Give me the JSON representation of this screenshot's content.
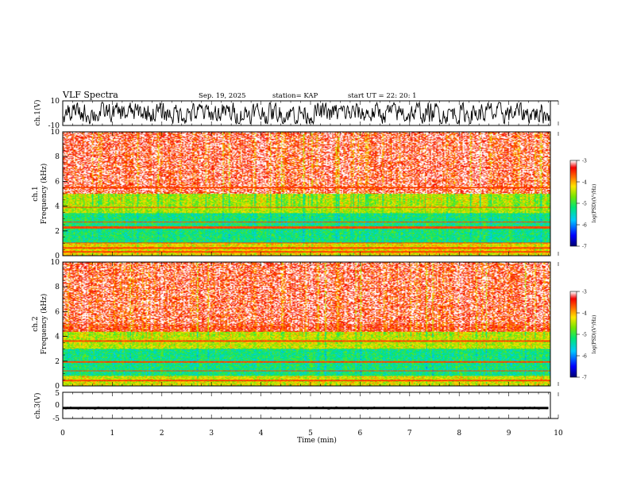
{
  "header": {
    "title": "VLF Spectra",
    "date": "Sep. 19, 2025",
    "station": "station= KAP",
    "start": "start  UT  =   22: 20: 1"
  },
  "colors": {
    "trace": "#000000",
    "axis": "#000000"
  },
  "chart_data": [
    {
      "type": "line",
      "panel": "ch1-waveform",
      "ylabel": "ch.1(V)",
      "ylim": [
        -10,
        10
      ],
      "yticks": [
        "10",
        "-10"
      ],
      "xlim": [
        0,
        10
      ],
      "series": [
        {
          "name": "ch.1 waveform",
          "style": "dense oscillating trace between about -8 and 8 V"
        }
      ]
    },
    {
      "type": "heatmap",
      "panel": "ch1-spectrogram",
      "ylabel_line1": "ch.1",
      "ylabel_line2": "Frequency  (kHz)",
      "ylim": [
        0,
        10
      ],
      "yticks": [
        "10",
        "8",
        "6",
        "4",
        "2",
        "0"
      ],
      "xlim": [
        0,
        9.8
      ],
      "colorbar": {
        "label": "log(PSD)(V²/Hz)",
        "min": -7,
        "max": -3,
        "ticks": [
          "-3",
          "-4",
          "-5",
          "-6",
          "-7"
        ]
      },
      "bands": [
        {
          "from_khz": 0,
          "to_khz": 1.0,
          "level": -4.2
        },
        {
          "from_khz": 1.0,
          "to_khz": 3.4,
          "level": -5.2
        },
        {
          "from_khz": 3.4,
          "to_khz": 5.0,
          "level": -4.5
        },
        {
          "from_khz": 5.0,
          "to_khz": 10,
          "level": -3.4
        }
      ],
      "lines_khz": [
        0.3,
        0.6,
        1.0,
        2.2,
        2.3,
        2.7,
        3.9,
        5.5
      ]
    },
    {
      "type": "heatmap",
      "panel": "ch2-spectrogram",
      "ylabel_line1": "ch.2",
      "ylabel_line2": "Frequency  (kHz)",
      "ylim": [
        0,
        10
      ],
      "yticks": [
        "10",
        "8",
        "6",
        "4",
        "2",
        "0"
      ],
      "xlim": [
        0,
        9.8
      ],
      "colorbar": {
        "label": "log(PSD)(V²/Hz)",
        "min": -7,
        "max": -3,
        "ticks": [
          "-3",
          "-4",
          "-5",
          "-6",
          "-7"
        ]
      },
      "bands": [
        {
          "from_khz": 0,
          "to_khz": 0.8,
          "level": -4.3
        },
        {
          "from_khz": 0.8,
          "to_khz": 3.0,
          "level": -5.2
        },
        {
          "from_khz": 3.0,
          "to_khz": 4.4,
          "level": -4.4
        },
        {
          "from_khz": 4.4,
          "to_khz": 10,
          "level": -3.4
        }
      ],
      "lines_khz": [
        0.4,
        1.2,
        1.9,
        3.6
      ]
    },
    {
      "type": "line",
      "panel": "ch3-waveform",
      "ylabel": "ch.3(V)",
      "ylim": [
        -5,
        5
      ],
      "yticks": [
        "5",
        "0",
        "-5"
      ],
      "xlim": [
        0,
        9.8
      ],
      "series": [
        {
          "name": "ch.3 waveform",
          "style": "thick flat band near -1 V"
        }
      ]
    }
  ],
  "xaxis": {
    "label": "Time  (min)",
    "min": 0,
    "max": 10,
    "ticks": [
      "0",
      "1",
      "2",
      "3",
      "4",
      "5",
      "6",
      "7",
      "8",
      "9",
      "10"
    ]
  }
}
